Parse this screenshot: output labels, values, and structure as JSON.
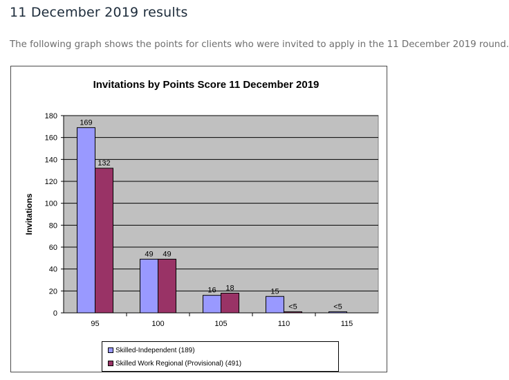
{
  "page": {
    "heading": "11 December 2019 results",
    "intro": "The following graph shows the points for clients who were invited to apply in the 11 December 2019 round."
  },
  "chart_data": {
    "type": "bar",
    "title": "Invitations by Points Score 11 December 2019",
    "xlabel": "",
    "ylabel": "Invitations",
    "ylim": [
      0,
      180
    ],
    "yticks": [
      0,
      20,
      40,
      60,
      80,
      100,
      120,
      140,
      160,
      180
    ],
    "grid": true,
    "legend_position": "bottom",
    "categories": [
      "95",
      "100",
      "105",
      "110",
      "115"
    ],
    "series": [
      {
        "name": "Skilled-Independent (189)",
        "color": "#9999ff",
        "values": [
          169,
          49,
          16,
          15,
          1
        ],
        "labels": [
          "169",
          "49",
          "16",
          "15",
          "<5"
        ]
      },
      {
        "name": "Skilled Work Regional (Provisional) (491)",
        "color": "#993366",
        "values": [
          132,
          49,
          18,
          1,
          0
        ],
        "labels": [
          "132",
          "49",
          "18",
          "<5",
          ""
        ]
      }
    ],
    "colors": {
      "plot_background": "#c0c0c0",
      "gridline": "#000000"
    }
  }
}
